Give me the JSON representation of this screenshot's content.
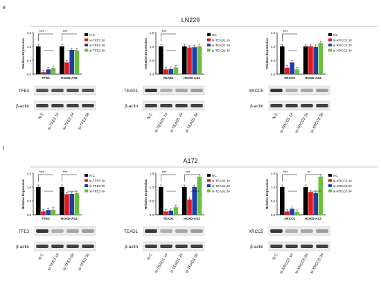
{
  "colors": {
    "nc": "#000000",
    "s1": "#e31a1c",
    "s2": "#1f3fa8",
    "s3": "#6abf3b"
  },
  "panels": [
    {
      "letter": "e",
      "title": "LN229",
      "chart_data": [
        {
          "type": "bar",
          "ylabel": "Relative Expression",
          "ylim": [
            0,
            1.5
          ],
          "yticks": [
            "0.0",
            "0.5",
            "1.0",
            "1.5"
          ],
          "categories": [
            "TFE3",
            "HOXD-AS2"
          ],
          "series": [
            {
              "name": "N.C",
              "values": [
                1.0,
                1.0
              ]
            },
            {
              "name": "si-TFE3 1#",
              "values": [
                0.07,
                0.42
              ]
            },
            {
              "name": "si-TFE3 2#",
              "values": [
                0.17,
                0.87
              ]
            },
            {
              "name": "si-TFE3 3#",
              "values": [
                0.22,
                0.85
              ]
            }
          ],
          "sig": [
            "***",
            "***"
          ]
        },
        {
          "type": "bar",
          "ylabel": "Relative Expression",
          "ylim": [
            0,
            1.5
          ],
          "yticks": [
            "0.0",
            "0.5",
            "1.0",
            "1.5"
          ],
          "categories": [
            "TEAD1",
            "HOXD-AS2"
          ],
          "series": [
            {
              "name": "NC",
              "values": [
                1.0,
                1.0
              ]
            },
            {
              "name": "si-TEAD1 1#",
              "values": [
                0.17,
                0.96
              ]
            },
            {
              "name": "si-TEAD1 2#",
              "values": [
                0.19,
                0.97
              ]
            },
            {
              "name": "si-TEAD1 3#",
              "values": [
                0.24,
                1.0
              ]
            }
          ],
          "sig": [
            "***",
            ""
          ]
        },
        {
          "type": "bar",
          "ylabel": "Relative Expression",
          "ylim": [
            0,
            1.5
          ],
          "yticks": [
            "0.0",
            "0.5",
            "1.0",
            "1.5"
          ],
          "categories": [
            "XRCC5",
            "HOXD-AS2"
          ],
          "series": [
            {
              "name": "NC",
              "values": [
                1.0,
                1.0
              ]
            },
            {
              "name": "si-XRCC5 1#",
              "values": [
                0.23,
                1.0
              ]
            },
            {
              "name": "si-XRCC5 2#",
              "values": [
                0.42,
                0.98
              ]
            },
            {
              "name": "si-XRCC5 3#",
              "values": [
                0.17,
                1.12
              ]
            }
          ],
          "sig": [
            "***",
            ""
          ]
        }
      ],
      "blots": [
        {
          "target": "TFE3",
          "control": "β-actin",
          "lanes": [
            "N.C",
            "si-TFE3 1#",
            "si-TFE3 2#",
            "si-TFE3 3#"
          ]
        },
        {
          "target": "TEAD1",
          "control": "β-actin",
          "lanes": [
            "N.C",
            "si-TEAD1 1#",
            "si-TEAD1 2#",
            "si-TEAD1 3#"
          ]
        },
        {
          "target": "XRCC5",
          "control": "β-actin",
          "lanes": [
            "N.C",
            "si-XRCC5 1#",
            "si-XRCC5 2#",
            "si-XRCC5 3#"
          ]
        }
      ]
    },
    {
      "letter": "f",
      "title": "A172",
      "chart_data": [
        {
          "type": "bar",
          "ylabel": "Relative Expression",
          "ylim": [
            0,
            1.5
          ],
          "yticks": [
            "0.0",
            "0.5",
            "1.0",
            "1.5"
          ],
          "categories": [
            "TFE3",
            "HOXD-AS2"
          ],
          "series": [
            {
              "name": "N.C",
              "values": [
                1.0,
                1.0
              ]
            },
            {
              "name": "si-TFE3 1#",
              "values": [
                0.12,
                0.74
              ]
            },
            {
              "name": "si-TFE3 2#",
              "values": [
                0.17,
                0.75
              ]
            },
            {
              "name": "si-TFE3 3#",
              "values": [
                0.18,
                0.78
              ]
            }
          ],
          "sig": [
            "***",
            "***"
          ]
        },
        {
          "type": "bar",
          "ylabel": "Relative Expression",
          "ylim": [
            0,
            1.5
          ],
          "yticks": [
            "0.0",
            "0.5",
            "1.0",
            "1.5"
          ],
          "categories": [
            "TEAD1",
            "HOXD-AS2"
          ],
          "series": [
            {
              "name": "NC",
              "values": [
                1.0,
                1.0
              ]
            },
            {
              "name": "si-TEAD1 1#",
              "values": [
                0.12,
                0.55
              ]
            },
            {
              "name": "si-TEAD1 2#",
              "values": [
                0.15,
                1.0
              ]
            },
            {
              "name": "si-TEAD1 3#",
              "values": [
                0.27,
                1.38
              ]
            }
          ],
          "sig": [
            "***",
            "***"
          ]
        },
        {
          "type": "bar",
          "ylabel": "Relative Expression",
          "ylim": [
            0,
            1.5
          ],
          "yticks": [
            "0.0",
            "0.5",
            "1.0",
            "1.5"
          ],
          "categories": [
            "XRCC5",
            "HOXD-AS2"
          ],
          "series": [
            {
              "name": "NC",
              "values": [
                1.0,
                1.0
              ]
            },
            {
              "name": "si-XRCC5 1#",
              "values": [
                0.12,
                0.82
              ]
            },
            {
              "name": "si-XRCC5 2#",
              "values": [
                0.22,
                0.79
              ]
            },
            {
              "name": "si-XRCC5 3#",
              "values": [
                0.1,
                1.38
              ]
            }
          ],
          "sig": [
            "***",
            "**"
          ]
        }
      ],
      "blots": [
        {
          "target": "TFE3",
          "control": "β-actin",
          "lanes": [
            "N.C",
            "si-TFE3 1#",
            "si-TFE3 2#",
            "si-TFE3 3#"
          ]
        },
        {
          "target": "TEAD1",
          "control": "β-actin",
          "lanes": [
            "N.C",
            "si-TEAD1 1#",
            "si-TEAD1 2#",
            "si-TEAD1 3#"
          ]
        },
        {
          "target": "XRCC5",
          "control": "β-actin",
          "lanes": [
            "N.C",
            "si-XRCC5 1#",
            "si-XRCC5 2#",
            "si-XRCC5 3#"
          ]
        }
      ]
    }
  ]
}
